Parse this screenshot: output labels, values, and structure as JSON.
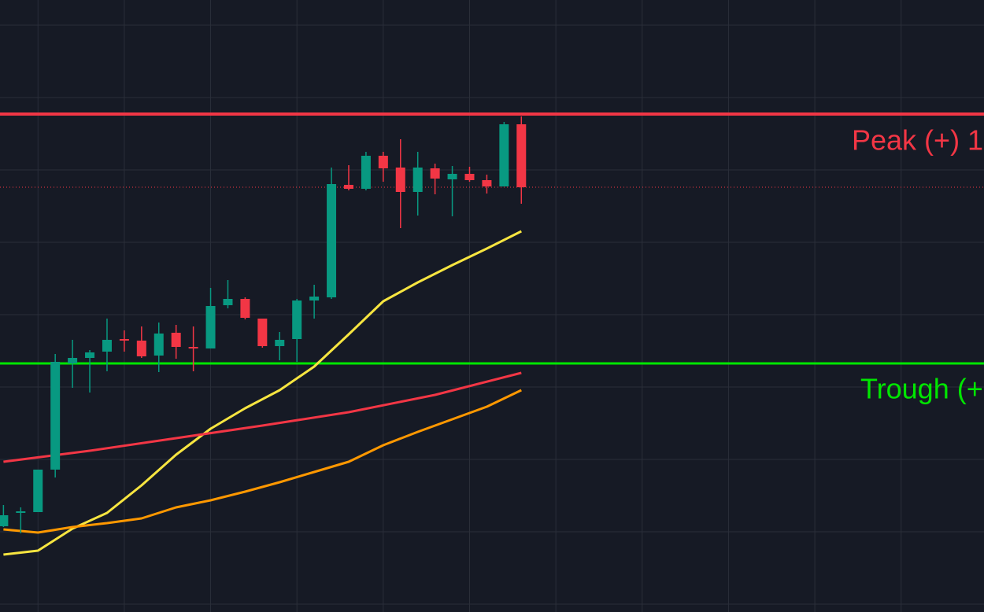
{
  "chart_data": {
    "type": "candlestick",
    "xlim": [
      -0.2,
      56.8
    ],
    "ylim": [
      0,
      778
    ],
    "xticks": [
      2,
      7,
      12,
      17,
      22,
      27,
      32,
      37,
      42,
      47,
      52
    ],
    "yticks": [
      10,
      102,
      194,
      286,
      378,
      470,
      562,
      654,
      746
    ],
    "grid": true,
    "up_color": "#089981",
    "down_color": "#f23645",
    "x": [
      0,
      1,
      2,
      3,
      4,
      5,
      6,
      7,
      8,
      9,
      10,
      11,
      12,
      13,
      14,
      15,
      16,
      17,
      18,
      19,
      20,
      21,
      22,
      23,
      24,
      25,
      26,
      27,
      28,
      29,
      30
    ],
    "open": [
      109,
      126,
      127,
      181,
      316,
      323,
      331,
      347,
      345,
      326,
      355,
      337,
      335,
      390,
      398,
      373,
      338,
      347,
      396,
      400,
      543,
      538,
      580,
      565,
      534,
      564,
      550,
      557,
      549,
      541,
      620
    ],
    "high": [
      136,
      133,
      181,
      328,
      346,
      333,
      373,
      358,
      363,
      368,
      365,
      363,
      412,
      422,
      400,
      373,
      356,
      398,
      416,
      565,
      568,
      585,
      585,
      601,
      585,
      570,
      567,
      566,
      556,
      623,
      630
    ],
    "low": [
      108,
      100,
      127,
      171,
      285,
      279,
      306,
      331,
      323,
      305,
      322,
      306,
      335,
      386,
      372,
      336,
      320,
      318,
      373,
      398,
      536,
      536,
      547,
      488,
      504,
      531,
      503,
      547,
      532,
      541,
      519
    ],
    "close": [
      123,
      128,
      181,
      318,
      323,
      330,
      346,
      346,
      325,
      354,
      337,
      336,
      389,
      398,
      374,
      338,
      346,
      396,
      401,
      544,
      538,
      580,
      564,
      534,
      565,
      551,
      557,
      549,
      541,
      620,
      540
    ],
    "lines": [
      {
        "color": "#f7e540",
        "x": [
          0,
          2,
          4,
          6,
          8,
          10,
          12,
          14,
          16,
          18,
          20,
          22,
          24,
          26,
          28,
          30
        ],
        "values": [
          73,
          78,
          106,
          126,
          161,
          200,
          233,
          259,
          282,
          312,
          353,
          395,
          419,
          441,
          462,
          484
        ]
      },
      {
        "color": "#f23645",
        "x": [
          0,
          5,
          10,
          15,
          20,
          25,
          30
        ],
        "values": [
          191,
          205,
          221,
          237,
          254,
          276,
          304
        ]
      },
      {
        "color": "#ff9800",
        "x": [
          0,
          2,
          4,
          6,
          8,
          10,
          12,
          14,
          16,
          18,
          20,
          22,
          24,
          26,
          28,
          30
        ],
        "values": [
          105,
          101,
          108,
          113,
          119,
          133,
          142,
          153,
          165,
          178,
          191,
          212,
          229,
          245,
          261,
          282
        ]
      }
    ],
    "levels": [
      {
        "value": 633,
        "color": "#f23645",
        "label": "Peak (+) 1"
      },
      {
        "value": 316,
        "color": "#00e600",
        "label": "Trough (+"
      }
    ]
  }
}
